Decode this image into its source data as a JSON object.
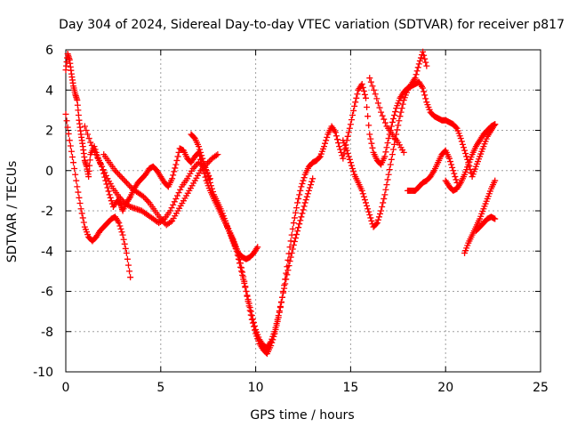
{
  "chart_data": {
    "type": "scatter",
    "title": "Day 304 of 2024, Sidereal Day-to-day VTEC variation (SDTVAR) for receiver p817",
    "xlabel": "GPS time / hours",
    "ylabel": "SDTVAR / TECUs",
    "xlim": [
      0,
      25
    ],
    "ylim": [
      -10,
      6
    ],
    "xticks": [
      0,
      5,
      10,
      15,
      20,
      25
    ],
    "yticks": [
      -10,
      -8,
      -6,
      -4,
      -2,
      0,
      2,
      4,
      6
    ],
    "grid": true,
    "marker": "+",
    "color": "#ff0000",
    "series": [
      {
        "x": [
          0.0,
          0.1,
          0.2,
          0.3,
          0.4,
          0.5,
          0.6,
          0.7,
          0.8,
          0.9,
          1.0,
          1.1,
          1.2,
          1.3,
          1.5,
          1.7,
          1.9,
          2.1,
          2.3,
          2.5,
          2.7,
          2.9,
          3.0,
          3.2,
          3.4,
          3.6,
          3.8,
          4.0,
          4.2,
          4.4,
          4.6,
          4.8,
          5.0,
          5.2,
          5.4,
          5.6,
          5.8,
          6.0,
          6.2,
          6.4,
          6.6,
          6.8,
          7.0,
          7.2,
          7.4,
          7.6,
          7.8,
          8.0,
          8.2,
          8.4,
          8.6,
          8.8,
          9.0,
          9.2,
          9.4,
          9.6,
          9.8,
          10.0,
          10.2,
          10.4,
          10.6,
          10.8,
          11.0,
          11.2,
          11.4,
          11.6,
          11.8,
          12.0,
          12.2,
          12.4,
          12.6,
          12.8,
          13.0,
          13.2,
          13.4,
          13.6,
          13.8,
          14.0,
          14.2,
          14.4,
          14.6,
          14.8,
          15.0,
          15.2,
          15.4,
          15.6,
          15.8,
          16.0,
          16.2,
          16.4,
          16.6,
          16.8,
          17.0,
          17.2,
          17.4,
          17.6,
          17.8,
          18.0,
          18.2,
          18.4,
          18.6,
          18.8,
          19.0,
          19.2,
          19.4,
          19.6,
          19.8,
          20.0,
          20.2,
          20.4,
          20.6,
          20.8,
          21.0,
          21.2,
          21.4,
          21.6,
          21.8,
          22.0,
          22.2,
          22.4,
          22.6
        ],
        "y": [
          5.0,
          5.8,
          5.5,
          4.8,
          4.2,
          3.8,
          3.5,
          2.5,
          1.8,
          1.2,
          0.5,
          0.2,
          -0.3,
          0.8,
          1.2,
          0.6,
          0.2,
          -0.5,
          -1.2,
          -1.8,
          -1.5,
          -1.7,
          -2.0,
          -1.6,
          -1.3,
          -0.9,
          -0.6,
          -0.4,
          -0.2,
          0.1,
          0.2,
          0.0,
          -0.3,
          -0.6,
          -0.8,
          -0.4,
          0.3,
          1.1,
          1.0,
          0.6,
          0.4,
          0.7,
          0.9,
          0.2,
          -0.5,
          -1.0,
          -1.4,
          -1.8,
          -2.2,
          -2.6,
          -3.0,
          -3.4,
          -3.9,
          -4.6,
          -5.5,
          -6.5,
          -7.4,
          -8.1,
          -8.6,
          -8.9,
          -9.1,
          -8.7,
          -8.1,
          -7.3,
          -6.3,
          -5.1,
          -3.8,
          -2.6,
          -1.6,
          -0.8,
          -0.2,
          0.2,
          0.4,
          0.5,
          0.7,
          1.2,
          1.8,
          2.2,
          1.9,
          1.2,
          0.6,
          1.5,
          2.3,
          3.2,
          4.0,
          4.3,
          3.6,
          1.8,
          0.9,
          0.5,
          0.3,
          0.7,
          1.6,
          2.4,
          3.1,
          3.6,
          3.9,
          4.1,
          4.2,
          4.3,
          4.4,
          4.1,
          3.4,
          2.9,
          2.7,
          2.6,
          2.5,
          2.5,
          2.4,
          2.3,
          2.1,
          1.6,
          1.0,
          0.4,
          -0.3,
          0.2,
          0.7,
          1.2,
          1.7,
          2.0,
          2.3
        ]
      },
      {
        "x": [
          0.0,
          0.2,
          0.4,
          0.6,
          0.8,
          1.0,
          1.2,
          1.4,
          1.6,
          1.8,
          2.0,
          2.2,
          2.4,
          2.6,
          2.8,
          3.0,
          3.2,
          3.4
        ],
        "y": [
          2.8,
          1.5,
          0.4,
          -0.8,
          -1.9,
          -2.8,
          -3.3,
          -3.5,
          -3.3,
          -3.0,
          -2.8,
          -2.6,
          -2.4,
          -2.3,
          -2.6,
          -3.2,
          -4.1,
          -5.3
        ]
      },
      {
        "x": [
          1.0,
          1.3,
          1.6,
          1.9,
          2.2,
          2.5,
          2.8,
          3.1,
          3.4,
          3.7,
          4.0,
          4.3,
          4.6,
          4.9,
          5.2,
          5.5,
          5.8,
          6.1,
          6.4,
          6.7,
          7.0,
          7.3,
          7.6
        ],
        "y": [
          2.2,
          1.4,
          0.8,
          0.2,
          -0.4,
          -0.9,
          -1.3,
          -1.6,
          -1.8,
          -1.9,
          -2.0,
          -2.2,
          -2.4,
          -2.6,
          -2.4,
          -2.0,
          -1.4,
          -0.8,
          -0.4,
          0.1,
          0.4,
          0.2,
          -0.4
        ]
      },
      {
        "x": [
          2.0,
          2.3,
          2.6,
          2.9,
          3.2,
          3.5,
          3.8,
          4.1,
          4.4,
          4.7,
          5.0,
          5.3,
          5.6,
          5.9,
          6.2,
          6.5,
          6.8,
          7.1,
          7.4,
          7.7,
          8.0
        ],
        "y": [
          0.8,
          0.4,
          0.0,
          -0.3,
          -0.6,
          -0.9,
          -1.1,
          -1.3,
          -1.6,
          -2.0,
          -2.4,
          -2.7,
          -2.5,
          -2.0,
          -1.5,
          -1.0,
          -0.5,
          0.0,
          0.3,
          0.6,
          0.8
        ]
      },
      {
        "x": [
          6.6,
          6.8,
          7.0,
          7.2,
          7.4,
          7.6,
          7.8,
          8.0,
          8.2,
          8.4,
          8.6,
          8.8,
          9.0,
          9.2,
          9.4,
          9.6,
          9.8,
          10.0,
          10.2,
          10.4,
          10.6,
          10.8,
          11.0,
          11.2,
          11.4,
          11.6,
          11.8,
          12.0,
          12.2,
          12.4,
          12.6,
          12.8,
          13.0
        ],
        "y": [
          1.8,
          1.6,
          1.2,
          0.6,
          0.0,
          -0.6,
          -1.2,
          -1.6,
          -2.0,
          -2.5,
          -3.0,
          -3.5,
          -4.0,
          -4.8,
          -5.6,
          -6.4,
          -7.2,
          -7.9,
          -8.4,
          -8.7,
          -8.8,
          -8.5,
          -8.0,
          -7.2,
          -6.3,
          -5.4,
          -4.5,
          -3.7,
          -3.0,
          -2.3,
          -1.6,
          -1.0,
          -0.4
        ]
      },
      {
        "x": [
          8.5,
          8.7,
          8.9,
          9.1,
          9.3,
          9.5,
          9.7,
          9.9,
          10.1
        ],
        "y": [
          -2.8,
          -3.2,
          -3.7,
          -4.1,
          -4.3,
          -4.4,
          -4.3,
          -4.1,
          -3.8
        ]
      },
      {
        "x": [
          14.6,
          14.8,
          15.0,
          15.2,
          15.4,
          15.6,
          15.8,
          16.0,
          16.2,
          16.4,
          16.6,
          16.8,
          17.0,
          17.2,
          17.4,
          17.6,
          17.8,
          18.0,
          18.2,
          18.4,
          18.6,
          18.8,
          19.0
        ],
        "y": [
          1.5,
          1.0,
          0.4,
          -0.2,
          -0.6,
          -1.0,
          -1.6,
          -2.2,
          -2.8,
          -2.6,
          -2.0,
          -1.2,
          -0.2,
          0.8,
          1.8,
          2.7,
          3.5,
          4.0,
          4.3,
          4.6,
          5.3,
          5.9,
          5.2
        ]
      },
      {
        "x": [
          16.0,
          16.3,
          16.6,
          16.9,
          17.2,
          17.5,
          17.8
        ],
        "y": [
          4.6,
          3.8,
          2.9,
          2.2,
          1.8,
          1.4,
          0.9
        ]
      },
      {
        "x": [
          18.0,
          18.2,
          18.4,
          18.6,
          18.8,
          19.0,
          19.2,
          19.4,
          19.6,
          19.8,
          20.0,
          20.2,
          20.4,
          20.6
        ],
        "y": [
          -1.0,
          -1.0,
          -1.0,
          -0.8,
          -0.6,
          -0.5,
          -0.3,
          0.0,
          0.4,
          0.8,
          1.0,
          0.6,
          0.0,
          -0.6
        ]
      },
      {
        "x": [
          20.0,
          20.2,
          20.4,
          20.6,
          20.8,
          21.0,
          21.2,
          21.4,
          21.6,
          21.8,
          22.0,
          22.2,
          22.4,
          22.6
        ],
        "y": [
          -0.5,
          -0.8,
          -1.0,
          -0.9,
          -0.6,
          -0.2,
          0.3,
          0.8,
          1.2,
          1.5,
          1.8,
          2.0,
          2.2,
          2.3
        ]
      },
      {
        "x": [
          21.0,
          21.2,
          21.4,
          21.6,
          21.8,
          22.0,
          22.2,
          22.4,
          22.6
        ],
        "y": [
          -4.1,
          -3.6,
          -3.2,
          -2.8,
          -2.4,
          -1.9,
          -1.4,
          -0.9,
          -0.5
        ]
      },
      {
        "x": [
          21.6,
          21.8,
          22.0,
          22.2,
          22.4,
          22.6
        ],
        "y": [
          -3.0,
          -2.8,
          -2.6,
          -2.4,
          -2.3,
          -2.4
        ]
      }
    ]
  }
}
